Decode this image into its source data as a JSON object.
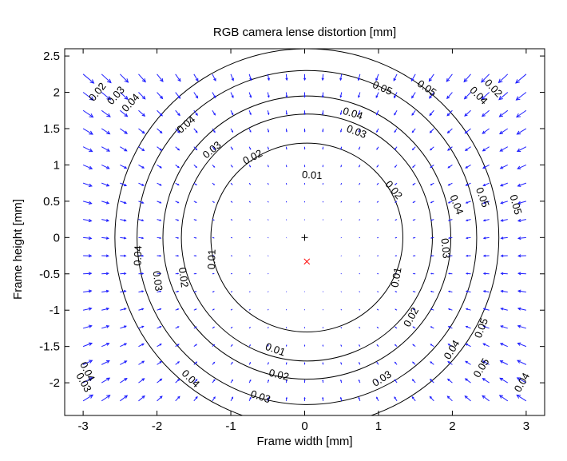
{
  "chart_data": {
    "type": "contour-quiver",
    "title": "RGB camera lense distortion [mm]",
    "xlabel": "Frame width [mm]",
    "ylabel": "Frame height [mm]",
    "xlim": [
      -3.25,
      3.25
    ],
    "ylim": [
      -2.45,
      2.6
    ],
    "xticks": [
      -3,
      -2,
      -1,
      0,
      1,
      2,
      3
    ],
    "yticks": [
      -2,
      -1.5,
      -1,
      -0.5,
      0,
      0.5,
      1,
      1.5,
      2,
      2.5
    ],
    "xtick_labels": [
      "-3",
      "-2",
      "-1",
      "0",
      "1",
      "2",
      "3"
    ],
    "ytick_labels": [
      "-2",
      "-1.5",
      "-1",
      "-0.5",
      "0",
      "0.5",
      "1",
      "1.5",
      "2",
      "2.5"
    ],
    "grid": false,
    "principal_point": [
      0,
      0
    ],
    "distortion_center": [
      0.03,
      -0.33
    ],
    "contour_levels": [
      0.01,
      0.02,
      0.03,
      0.04,
      0.05
    ],
    "contour_radii_mm": [
      1.3,
      1.7,
      1.95,
      2.3,
      2.6
    ],
    "contour_labels": [
      {
        "text": "0.01",
        "x": 0.1,
        "y": 0.85
      },
      {
        "text": "0.01",
        "x": -1.25,
        "y": -0.3
      },
      {
        "text": "0.01",
        "x": 1.25,
        "y": -0.55
      },
      {
        "text": "0.01",
        "x": -0.4,
        "y": -1.55
      },
      {
        "text": "0.02",
        "x": -0.7,
        "y": 1.1
      },
      {
        "text": "0.02",
        "x": 1.2,
        "y": 0.65
      },
      {
        "text": "0.02",
        "x": -1.65,
        "y": -0.55
      },
      {
        "text": "0.02",
        "x": 1.45,
        "y": -1.1
      },
      {
        "text": "0.02",
        "x": -0.35,
        "y": -1.9
      },
      {
        "text": "0.03",
        "x": -1.25,
        "y": 1.2
      },
      {
        "text": "0.03",
        "x": 0.7,
        "y": 1.45
      },
      {
        "text": "0.03",
        "x": 1.9,
        "y": -0.15
      },
      {
        "text": "0.03",
        "x": -2.0,
        "y": -0.6
      },
      {
        "text": "0.03",
        "x": 1.05,
        "y": -1.95
      },
      {
        "text": "0.03",
        "x": -0.6,
        "y": -2.2
      },
      {
        "text": "0.03",
        "x": -2.55,
        "y": 1.95
      },
      {
        "text": "0.03",
        "x": -3.0,
        "y": -2.0
      },
      {
        "text": "0.04",
        "x": -1.6,
        "y": 1.55
      },
      {
        "text": "0.04",
        "x": 0.65,
        "y": 1.7
      },
      {
        "text": "0.04",
        "x": 2.05,
        "y": 0.45
      },
      {
        "text": "0.04",
        "x": -2.25,
        "y": -0.25
      },
      {
        "text": "0.04",
        "x": 2.0,
        "y": -1.55
      },
      {
        "text": "0.04",
        "x": -1.55,
        "y": -1.95
      },
      {
        "text": "0.04",
        "x": -2.35,
        "y": 1.85
      },
      {
        "text": "0.04",
        "x": 2.35,
        "y": 1.95
      },
      {
        "text": "0.04",
        "x": -2.95,
        "y": -1.85
      },
      {
        "text": "0.04",
        "x": 2.95,
        "y": -2.0
      },
      {
        "text": "0.05",
        "x": 1.05,
        "y": 2.05
      },
      {
        "text": "0.05",
        "x": 1.65,
        "y": 2.05
      },
      {
        "text": "0.05",
        "x": 2.4,
        "y": 0.55
      },
      {
        "text": "0.05",
        "x": 2.85,
        "y": 0.45
      },
      {
        "text": "0.05",
        "x": 2.4,
        "y": -1.25
      },
      {
        "text": "0.05",
        "x": 2.4,
        "y": -1.8
      },
      {
        "text": "0.02",
        "x": -2.8,
        "y": 2.0
      },
      {
        "text": "0.02",
        "x": 2.55,
        "y": 2.05
      }
    ],
    "quiver_grid": {
      "x_start": -3.0,
      "x_end": 3.0,
      "x_step": 0.25,
      "y_start": -2.25,
      "y_end": 2.25,
      "y_step": 0.25
    },
    "colors": {
      "contour": "#000000",
      "arrow": "#1f1fff",
      "principal_point_marker": "#000000",
      "distortion_center_marker": "#ff0000"
    }
  }
}
